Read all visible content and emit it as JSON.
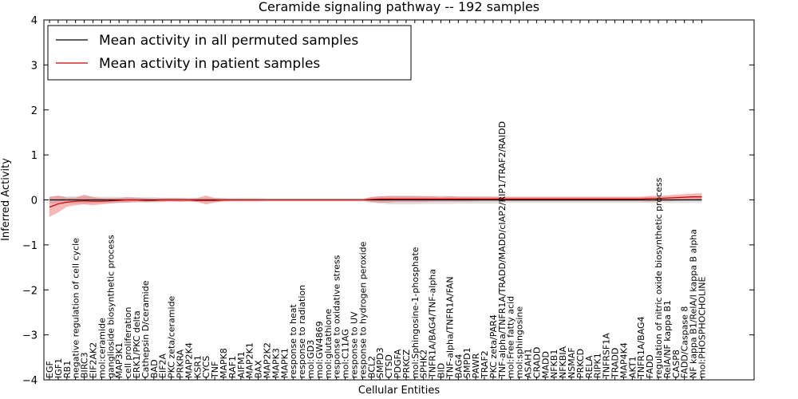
{
  "chart_data": {
    "type": "line",
    "title": "Ceramide signaling pathway -- 192 samples",
    "xlabel": "Cellular Entities",
    "ylabel": "Inferred Activity",
    "ylim": [
      -4,
      4
    ],
    "yticks": [
      -4,
      -3,
      -2,
      -1,
      0,
      1,
      2,
      3,
      4
    ],
    "legend_position": "upper-left",
    "categories": [
      "EGF",
      "IGF1",
      "RB1",
      "negative regulation of cell cycle",
      "BIRC3",
      "EIF2AK2",
      "mol:ceramide",
      "ganglioside biosynthetic process",
      "MAP3K1",
      "cell proliferation",
      "ERK1/PKC delta",
      "Cathepsin D/ceramide",
      "BAD",
      "EIF2A",
      "PKC zeta/ceramide",
      "PRKRA",
      "MAP2K4",
      "KSR1",
      "CYCS",
      "TNF",
      "MAPK8",
      "RAF1",
      "AIFM1",
      "MAP2K1",
      "BAX",
      "MAP2K2",
      "MAPK3",
      "MAPK1",
      "response to heat",
      "response to radiation",
      "mol:GD3",
      "mol:GW4869",
      "mol:glutathione",
      "response to oxidative stress",
      "mol:C11AG",
      "response to UV",
      "response to hydrogen peroxide",
      "BCL2",
      "SMPD3",
      "CTSD",
      "PDGFA",
      "PRKCZ",
      "mol:Sphingosine-1-phosphate",
      "SPHK2",
      "TNFR1A/BAG4/TNF-alpha",
      "BID",
      "TNF-alpha/TNFR1A/FAN",
      "BAG4",
      "SMPD1",
      "PAWR",
      "TRAF2",
      "PKC zeta/PAR4",
      "TNF-alpha/TNFR1A/TRADD/MADD/cIAP2/RIP1/TRAF2/RAIDD",
      "mol:Free fatty acid",
      "mol:sphingosine",
      "ASAH1",
      "CRADD",
      "MADD",
      "NFKB1",
      "NFKBIA",
      "NSMAF",
      "PRKCD",
      "RELA",
      "RIPK1",
      "TNFRSF1A",
      "TRADD",
      "MAP4K4",
      "AKT1",
      "TNFR1A/BAG4",
      "FADD",
      "regulation of nitric oxide biosynthetic process",
      "RelA/NF kappa B1",
      "CASP8",
      "FADD/Caspase 8",
      "NF kappa B1/RelA/I kappa B alpha",
      "mol:PHOSPHOCHOLINE"
    ],
    "series": [
      {
        "name": "Mean activity in all permuted samples",
        "color": "#000000",
        "values": [
          0,
          0,
          0,
          0,
          0,
          0,
          0,
          0,
          0,
          0,
          0,
          0,
          0,
          0,
          0,
          0,
          0,
          0,
          0,
          0,
          0,
          0,
          0,
          0,
          0,
          0,
          0,
          0,
          0,
          0,
          0,
          0,
          0,
          0,
          0,
          0,
          0,
          0,
          0,
          0,
          0,
          0,
          0,
          0,
          0,
          0,
          0,
          0,
          0,
          0,
          0,
          0,
          0,
          0,
          0,
          0,
          0,
          0,
          0,
          0,
          0,
          0,
          0,
          0,
          0,
          0,
          0,
          0,
          0,
          0,
          0,
          0,
          0,
          0,
          0,
          0
        ],
        "band_lower": [
          -0.08,
          -0.08,
          -0.08,
          -0.08,
          -0.08,
          -0.08,
          -0.07,
          -0.07,
          -0.07,
          -0.06,
          -0.06,
          -0.06,
          -0.06,
          -0.05,
          -0.05,
          -0.05,
          -0.05,
          -0.05,
          -0.05,
          -0.05,
          -0.05,
          -0.05,
          -0.05,
          -0.05,
          -0.05,
          -0.04,
          -0.04,
          -0.04,
          -0.04,
          -0.04,
          -0.04,
          -0.04,
          -0.04,
          -0.04,
          -0.04,
          -0.04,
          -0.04,
          -0.06,
          -0.08,
          -0.1,
          -0.1,
          -0.1,
          -0.1,
          -0.09,
          -0.09,
          -0.09,
          -0.09,
          -0.08,
          -0.08,
          -0.08,
          -0.08,
          -0.08,
          -0.07,
          -0.07,
          -0.07,
          -0.07,
          -0.07,
          -0.07,
          -0.07,
          -0.07,
          -0.07,
          -0.07,
          -0.07,
          -0.07,
          -0.07,
          -0.07,
          -0.07,
          -0.07,
          -0.07,
          -0.07,
          -0.07,
          -0.07,
          -0.07,
          -0.07,
          -0.07,
          -0.07
        ],
        "band_upper": [
          0.08,
          0.08,
          0.08,
          0.08,
          0.08,
          0.08,
          0.07,
          0.07,
          0.07,
          0.06,
          0.06,
          0.06,
          0.06,
          0.05,
          0.05,
          0.05,
          0.05,
          0.05,
          0.05,
          0.05,
          0.05,
          0.05,
          0.05,
          0.05,
          0.05,
          0.04,
          0.04,
          0.04,
          0.04,
          0.04,
          0.04,
          0.04,
          0.04,
          0.04,
          0.04,
          0.04,
          0.04,
          0.06,
          0.08,
          0.1,
          0.1,
          0.1,
          0.1,
          0.09,
          0.09,
          0.09,
          0.09,
          0.08,
          0.08,
          0.08,
          0.08,
          0.08,
          0.07,
          0.07,
          0.07,
          0.07,
          0.07,
          0.07,
          0.07,
          0.07,
          0.07,
          0.07,
          0.07,
          0.07,
          0.07,
          0.07,
          0.07,
          0.07,
          0.07,
          0.07,
          0.07,
          0.07,
          0.07,
          0.07,
          0.07,
          0.07
        ]
      },
      {
        "name": "Mean activity in patient samples",
        "color": "#cc0000",
        "values": [
          -0.16,
          -0.09,
          -0.05,
          -0.03,
          -0.02,
          -0.03,
          -0.03,
          -0.02,
          -0.01,
          0,
          0,
          -0.01,
          -0.01,
          0,
          0,
          0,
          0,
          -0.01,
          -0.01,
          -0.01,
          0,
          0,
          0,
          0,
          0,
          0,
          0,
          0,
          0,
          0,
          0,
          0,
          0,
          0,
          0,
          0,
          0,
          0.01,
          0.02,
          0.02,
          0.02,
          0.02,
          0.02,
          0.02,
          0.02,
          0.02,
          0.02,
          0.02,
          0.02,
          0.02,
          0.02,
          0.02,
          0.02,
          0.02,
          0.02,
          0.02,
          0.02,
          0.02,
          0.02,
          0.02,
          0.02,
          0.02,
          0.02,
          0.02,
          0.02,
          0.02,
          0.02,
          0.02,
          0.02,
          0.03,
          0.03,
          0.04,
          0.05,
          0.06,
          0.07,
          0.07
        ],
        "band_lower": [
          -0.38,
          -0.28,
          -0.15,
          -0.12,
          -0.1,
          -0.12,
          -0.1,
          -0.08,
          -0.06,
          -0.06,
          -0.04,
          -0.05,
          -0.04,
          -0.04,
          -0.03,
          -0.04,
          -0.03,
          -0.05,
          -0.1,
          -0.06,
          -0.03,
          -0.02,
          -0.02,
          -0.02,
          -0.02,
          -0.01,
          -0.01,
          -0.01,
          -0.01,
          -0.01,
          -0.01,
          -0.01,
          -0.01,
          -0.01,
          -0.01,
          -0.01,
          -0.01,
          -0.05,
          -0.06,
          -0.06,
          -0.05,
          -0.05,
          -0.05,
          -0.05,
          -0.04,
          -0.04,
          -0.04,
          -0.04,
          -0.04,
          -0.03,
          -0.03,
          -0.03,
          -0.03,
          -0.03,
          -0.03,
          -0.03,
          -0.03,
          -0.03,
          -0.03,
          -0.03,
          -0.03,
          -0.03,
          -0.03,
          -0.03,
          -0.03,
          -0.03,
          -0.03,
          -0.03,
          -0.03,
          -0.04,
          -0.03,
          -0.03,
          -0.02,
          -0.01,
          0,
          0
        ],
        "band_upper": [
          0.06,
          0.1,
          0.05,
          0.05,
          0.12,
          0.06,
          0.04,
          0.04,
          0.04,
          0.06,
          0.05,
          0.04,
          0.03,
          0.04,
          0.04,
          0.04,
          0.03,
          0.04,
          0.1,
          0.04,
          0.03,
          0.02,
          0.02,
          0.02,
          0.02,
          0.01,
          0.01,
          0.01,
          0.01,
          0.01,
          0.01,
          0.01,
          0.01,
          0.01,
          0.01,
          0.01,
          0.01,
          0.07,
          0.08,
          0.08,
          0.08,
          0.08,
          0.08,
          0.08,
          0.08,
          0.07,
          0.08,
          0.07,
          0.07,
          0.07,
          0.07,
          0.07,
          0.07,
          0.07,
          0.07,
          0.07,
          0.07,
          0.07,
          0.07,
          0.07,
          0.07,
          0.07,
          0.07,
          0.07,
          0.07,
          0.07,
          0.07,
          0.07,
          0.07,
          0.09,
          0.09,
          0.1,
          0.12,
          0.13,
          0.14,
          0.15
        ]
      }
    ]
  }
}
